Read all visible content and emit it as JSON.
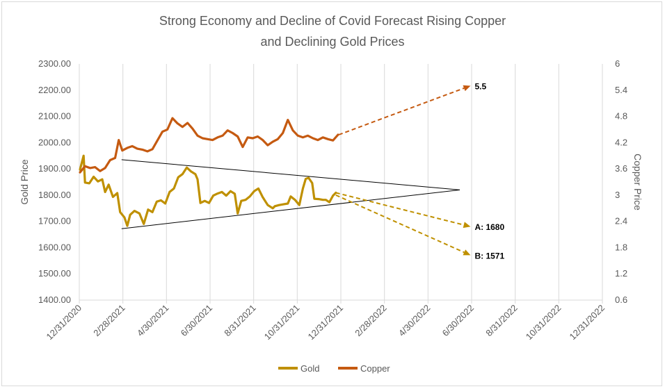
{
  "chart_data": {
    "type": "line",
    "title_line1": "Strong Economy and Decline of Covid Forecast Rising Copper",
    "title_line2": "and Declining Gold Prices",
    "ylabel": "Gold Price",
    "y2label": "Copper Price",
    "ylim": [
      1400,
      2300
    ],
    "y2lim": [
      0.6,
      6
    ],
    "y_ticks": [
      "1400.00",
      "1500.00",
      "1600.00",
      "1700.00",
      "1800.00",
      "1900.00",
      "2000.00",
      "2100.00",
      "2200.00",
      "2300.00"
    ],
    "y2_ticks": [
      "0.6",
      "1.2",
      "1.8",
      "2.4",
      "3",
      "3.6",
      "4.2",
      "4.8",
      "5.4",
      "6"
    ],
    "x_ticks": [
      "12/31/2020",
      "2/28/2021",
      "4/30/2021",
      "6/30/2021",
      "8/31/2021",
      "10/31/2021",
      "12/31/2021",
      "2/28/2022",
      "4/30/2022",
      "6/30/2022",
      "8/31/2022",
      "10/31/2022",
      "12/31/2022"
    ],
    "grid": "vertical",
    "legend_position": "bottom",
    "series": [
      {
        "name": "Gold",
        "color": "#bf9000",
        "axis": "left",
        "points": [
          [
            "2021-01-01",
            1897
          ],
          [
            "2021-01-06",
            1950
          ],
          [
            "2021-01-08",
            1848
          ],
          [
            "2021-01-14",
            1845
          ],
          [
            "2021-01-20",
            1870
          ],
          [
            "2021-01-26",
            1852
          ],
          [
            "2021-02-01",
            1860
          ],
          [
            "2021-02-05",
            1812
          ],
          [
            "2021-02-10",
            1840
          ],
          [
            "2021-02-16",
            1793
          ],
          [
            "2021-02-22",
            1808
          ],
          [
            "2021-02-26",
            1735
          ],
          [
            "2021-03-04",
            1715
          ],
          [
            "2021-03-08",
            1683
          ],
          [
            "2021-03-12",
            1725
          ],
          [
            "2021-03-18",
            1740
          ],
          [
            "2021-03-25",
            1730
          ],
          [
            "2021-03-31",
            1690
          ],
          [
            "2021-04-06",
            1745
          ],
          [
            "2021-04-12",
            1735
          ],
          [
            "2021-04-18",
            1775
          ],
          [
            "2021-04-24",
            1780
          ],
          [
            "2021-04-30",
            1768
          ],
          [
            "2021-05-06",
            1812
          ],
          [
            "2021-05-12",
            1825
          ],
          [
            "2021-05-18",
            1868
          ],
          [
            "2021-05-24",
            1880
          ],
          [
            "2021-05-30",
            1905
          ],
          [
            "2021-06-05",
            1890
          ],
          [
            "2021-06-11",
            1880
          ],
          [
            "2021-06-14",
            1860
          ],
          [
            "2021-06-18",
            1770
          ],
          [
            "2021-06-24",
            1778
          ],
          [
            "2021-06-30",
            1770
          ],
          [
            "2021-07-06",
            1798
          ],
          [
            "2021-07-12",
            1806
          ],
          [
            "2021-07-18",
            1812
          ],
          [
            "2021-07-24",
            1798
          ],
          [
            "2021-07-30",
            1815
          ],
          [
            "2021-08-05",
            1805
          ],
          [
            "2021-08-09",
            1730
          ],
          [
            "2021-08-14",
            1778
          ],
          [
            "2021-08-20",
            1782
          ],
          [
            "2021-08-26",
            1795
          ],
          [
            "2021-09-01",
            1815
          ],
          [
            "2021-09-07",
            1825
          ],
          [
            "2021-09-13",
            1792
          ],
          [
            "2021-09-20",
            1762
          ],
          [
            "2021-09-27",
            1750
          ],
          [
            "2021-09-30",
            1758
          ],
          [
            "2021-10-06",
            1762
          ],
          [
            "2021-10-12",
            1765
          ],
          [
            "2021-10-18",
            1768
          ],
          [
            "2021-10-22",
            1795
          ],
          [
            "2021-10-28",
            1782
          ],
          [
            "2021-11-03",
            1762
          ],
          [
            "2021-11-08",
            1825
          ],
          [
            "2021-11-12",
            1862
          ],
          [
            "2021-11-16",
            1866
          ],
          [
            "2021-11-21",
            1846
          ],
          [
            "2021-11-24",
            1786
          ],
          [
            "2021-11-30",
            1785
          ],
          [
            "2021-12-06",
            1782
          ],
          [
            "2021-12-10",
            1782
          ],
          [
            "2021-12-15",
            1773
          ],
          [
            "2021-12-20",
            1798
          ],
          [
            "2021-12-24",
            1809
          ]
        ]
      },
      {
        "name": "Copper",
        "color": "#c55a11",
        "axis": "right",
        "points": [
          [
            "2021-01-01",
            3.52
          ],
          [
            "2021-01-08",
            3.66
          ],
          [
            "2021-01-15",
            3.62
          ],
          [
            "2021-01-22",
            3.64
          ],
          [
            "2021-01-29",
            3.55
          ],
          [
            "2021-02-05",
            3.62
          ],
          [
            "2021-02-12",
            3.8
          ],
          [
            "2021-02-19",
            3.85
          ],
          [
            "2021-02-24",
            4.26
          ],
          [
            "2021-03-01",
            4.02
          ],
          [
            "2021-03-08",
            4.08
          ],
          [
            "2021-03-15",
            4.12
          ],
          [
            "2021-03-22",
            4.06
          ],
          [
            "2021-03-29",
            4.04
          ],
          [
            "2021-04-05",
            4.0
          ],
          [
            "2021-04-12",
            4.05
          ],
          [
            "2021-04-19",
            4.25
          ],
          [
            "2021-04-26",
            4.45
          ],
          [
            "2021-05-03",
            4.5
          ],
          [
            "2021-05-10",
            4.76
          ],
          [
            "2021-05-17",
            4.64
          ],
          [
            "2021-05-24",
            4.56
          ],
          [
            "2021-05-31",
            4.65
          ],
          [
            "2021-06-07",
            4.52
          ],
          [
            "2021-06-14",
            4.36
          ],
          [
            "2021-06-21",
            4.3
          ],
          [
            "2021-06-28",
            4.28
          ],
          [
            "2021-07-05",
            4.26
          ],
          [
            "2021-07-12",
            4.32
          ],
          [
            "2021-07-19",
            4.36
          ],
          [
            "2021-07-26",
            4.48
          ],
          [
            "2021-08-02",
            4.42
          ],
          [
            "2021-08-09",
            4.34
          ],
          [
            "2021-08-16",
            4.1
          ],
          [
            "2021-08-23",
            4.32
          ],
          [
            "2021-08-30",
            4.3
          ],
          [
            "2021-09-06",
            4.34
          ],
          [
            "2021-09-13",
            4.26
          ],
          [
            "2021-09-20",
            4.14
          ],
          [
            "2021-09-27",
            4.22
          ],
          [
            "2021-10-04",
            4.28
          ],
          [
            "2021-10-11",
            4.42
          ],
          [
            "2021-10-18",
            4.72
          ],
          [
            "2021-10-25",
            4.48
          ],
          [
            "2021-11-01",
            4.36
          ],
          [
            "2021-11-08",
            4.32
          ],
          [
            "2021-11-15",
            4.36
          ],
          [
            "2021-11-22",
            4.3
          ],
          [
            "2021-11-29",
            4.26
          ],
          [
            "2021-12-06",
            4.32
          ],
          [
            "2021-12-13",
            4.28
          ],
          [
            "2021-12-20",
            4.25
          ],
          [
            "2021-12-27",
            4.38
          ]
        ]
      }
    ],
    "trendlines": [
      {
        "from": [
          "2021-02-28",
          1935
        ],
        "to": [
          "2022-06-15",
          1820
        ],
        "color": "#000000"
      },
      {
        "from": [
          "2021-02-28",
          1672
        ],
        "to": [
          "2022-06-15",
          1820
        ],
        "color": "#000000"
      }
    ],
    "forecast_arrows": [
      {
        "series": "Copper",
        "from": [
          "2021-12-28",
          4.38
        ],
        "to": [
          "2022-06-30",
          5.5
        ],
        "label": "5.5",
        "color": "#c55a11"
      },
      {
        "series": "Gold",
        "from": [
          "2021-12-24",
          1809
        ],
        "to": [
          "2022-06-30",
          1680
        ],
        "label": "A: 1680",
        "color": "#bf9000"
      },
      {
        "series": "Gold",
        "from": [
          "2021-12-24",
          1800
        ],
        "to": [
          "2022-06-30",
          1571
        ],
        "label": "B: 1571",
        "color": "#bf9000"
      }
    ]
  }
}
